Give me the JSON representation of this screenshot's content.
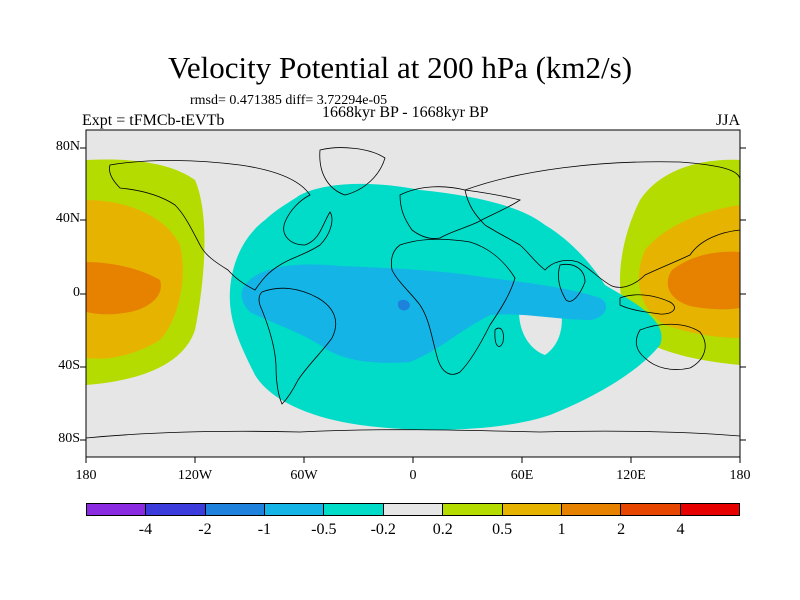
{
  "title": "Velocity Potential at 200 hPa (km2/s)",
  "stats": "rmsd= 0.471385 diff= 3.72294e-05",
  "experiment": "Expt = tFMCb-tEVTb",
  "period": "1668kyr BP - 1668kyr BP",
  "season": "JJA",
  "lat_labels": [
    "80N",
    "40N",
    "0",
    "40S",
    "80S"
  ],
  "lon_labels": [
    "180",
    "120W",
    "60W",
    "0",
    "60E",
    "120E",
    "180"
  ],
  "colorbar": {
    "colors": [
      "#8a2be2",
      "#3c3cdc",
      "#1e82dc",
      "#14b4e6",
      "#00dcc8",
      "#e6e6e6",
      "#b4dc00",
      "#e6b400",
      "#e68200",
      "#e64600",
      "#e60000"
    ],
    "labels": [
      "-4",
      "-2",
      "-1",
      "-0.5",
      "-0.2",
      "0.2",
      "0.5",
      "1",
      "2",
      "4"
    ]
  },
  "field_colors": {
    "land": "#e6e6e6",
    "neg_weak": "#00dcc8",
    "neg_mod": "#14b4e6",
    "neg_strong": "#1e82dc",
    "pos_weak": "#b4dc00",
    "pos_mod": "#e6b400",
    "pos_strong": "#e68200"
  }
}
